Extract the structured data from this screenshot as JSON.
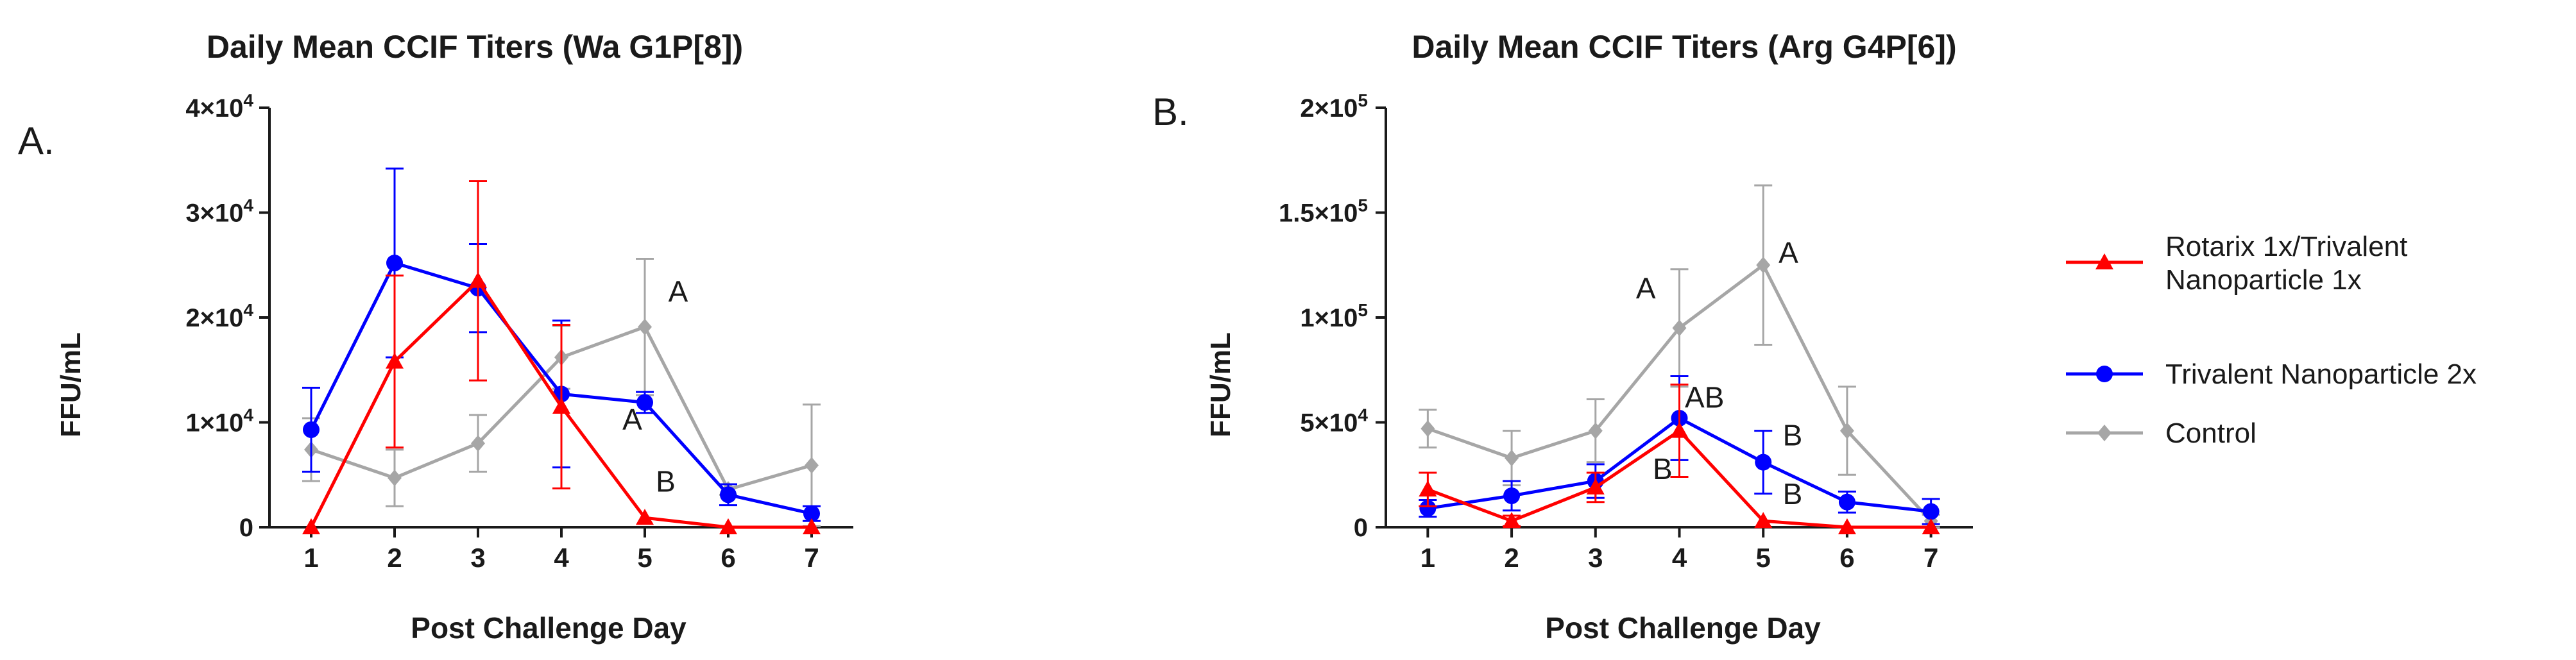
{
  "legend": [
    {
      "name": "Rotarix 1x/Trivalent Nanoparticle 1x",
      "lines": [
        "Rotarix 1x/Trivalent",
        "Nanoparticle 1x"
      ],
      "color": "#ff0000",
      "marker": "triangle"
    },
    {
      "name": "Trivalent Nanoparticle 2x",
      "lines": [
        "Trivalent Nanoparticle 2x"
      ],
      "color": "#0000ff",
      "marker": "circle"
    },
    {
      "name": "Control",
      "lines": [
        "Control"
      ],
      "color": "#a6a6a6",
      "marker": "diamond"
    }
  ],
  "chart_data": [
    {
      "type": "line",
      "panel_label": "A.",
      "title": "Daily Mean CCIF Titers (Wa G1P[8])",
      "xlabel": "Post Challenge Day",
      "ylabel": "FFU/mL",
      "x": [
        1,
        2,
        3,
        4,
        5,
        6,
        7
      ],
      "ylim": [
        0,
        40000
      ],
      "yticks": [
        {
          "value": 0,
          "base": "0",
          "exp": ""
        },
        {
          "value": 10000,
          "base": "1×10",
          "exp": "4"
        },
        {
          "value": 20000,
          "base": "2×10",
          "exp": "4"
        },
        {
          "value": 30000,
          "base": "3×10",
          "exp": "4"
        },
        {
          "value": 40000,
          "base": "4×10",
          "exp": "4"
        }
      ],
      "series": [
        {
          "name": "Rotarix 1x/Trivalent Nanoparticle 1x",
          "values": [
            0,
            15800,
            23500,
            11500,
            900,
            0,
            0
          ],
          "errors": [
            0,
            8200,
            9500,
            7800,
            0,
            0,
            0
          ]
        },
        {
          "name": "Trivalent Nanoparticle 2x",
          "values": [
            9300,
            25200,
            22800,
            12700,
            11900,
            3100,
            1300
          ],
          "errors": [
            4000,
            9000,
            4200,
            7000,
            1000,
            1000,
            700
          ]
        },
        {
          "name": "Control",
          "values": [
            7400,
            4700,
            8000,
            16200,
            19100,
            3600,
            5900
          ],
          "errors": [
            3000,
            2700,
            2700,
            3000,
            6500,
            500,
            5800
          ]
        }
      ],
      "annotations": [
        {
          "text": "A",
          "x": 5.4,
          "y": 21500
        },
        {
          "text": "A",
          "x": 4.85,
          "y": 9300
        },
        {
          "text": "B",
          "x": 5.25,
          "y": 3400
        }
      ]
    },
    {
      "type": "line",
      "panel_label": "B.",
      "title": "Daily Mean CCIF Titers (Arg G4P[6])",
      "xlabel": "Post Challenge Day",
      "ylabel": "FFU/mL",
      "x": [
        1,
        2,
        3,
        4,
        5,
        6,
        7
      ],
      "ylim": [
        0,
        200000
      ],
      "yticks": [
        {
          "value": 0,
          "base": "0",
          "exp": ""
        },
        {
          "value": 50000,
          "base": "5×10",
          "exp": "4"
        },
        {
          "value": 100000,
          "base": "1×10",
          "exp": "5"
        },
        {
          "value": 150000,
          "base": "1.5×10",
          "exp": "5"
        },
        {
          "value": 200000,
          "base": "2×10",
          "exp": "5"
        }
      ],
      "series": [
        {
          "name": "Rotarix 1x/Trivalent Nanoparticle 1x",
          "values": [
            18000,
            3000,
            19000,
            46000,
            3000,
            0,
            0
          ],
          "errors": [
            8000,
            2500,
            7000,
            22000,
            0,
            0,
            0
          ]
        },
        {
          "name": "Trivalent Nanoparticle 2x",
          "values": [
            9000,
            15000,
            22000,
            52000,
            31000,
            12000,
            7500
          ],
          "errors": [
            4000,
            7000,
            8000,
            20000,
            15000,
            5000,
            6000
          ]
        },
        {
          "name": "Control",
          "values": [
            47000,
            33000,
            46000,
            95000,
            125000,
            46000,
            3000
          ],
          "errors": [
            9000,
            13000,
            15000,
            28000,
            38000,
            21000,
            3000
          ]
        }
      ],
      "annotations": [
        {
          "text": "A",
          "x": 3.6,
          "y": 109000
        },
        {
          "text": "A",
          "x": 5.3,
          "y": 126000
        },
        {
          "text": "AB",
          "x": 4.3,
          "y": 57000
        },
        {
          "text": "B",
          "x": 3.8,
          "y": 23000
        },
        {
          "text": "B",
          "x": 5.35,
          "y": 39000
        },
        {
          "text": "B",
          "x": 5.35,
          "y": 11000
        }
      ]
    }
  ]
}
